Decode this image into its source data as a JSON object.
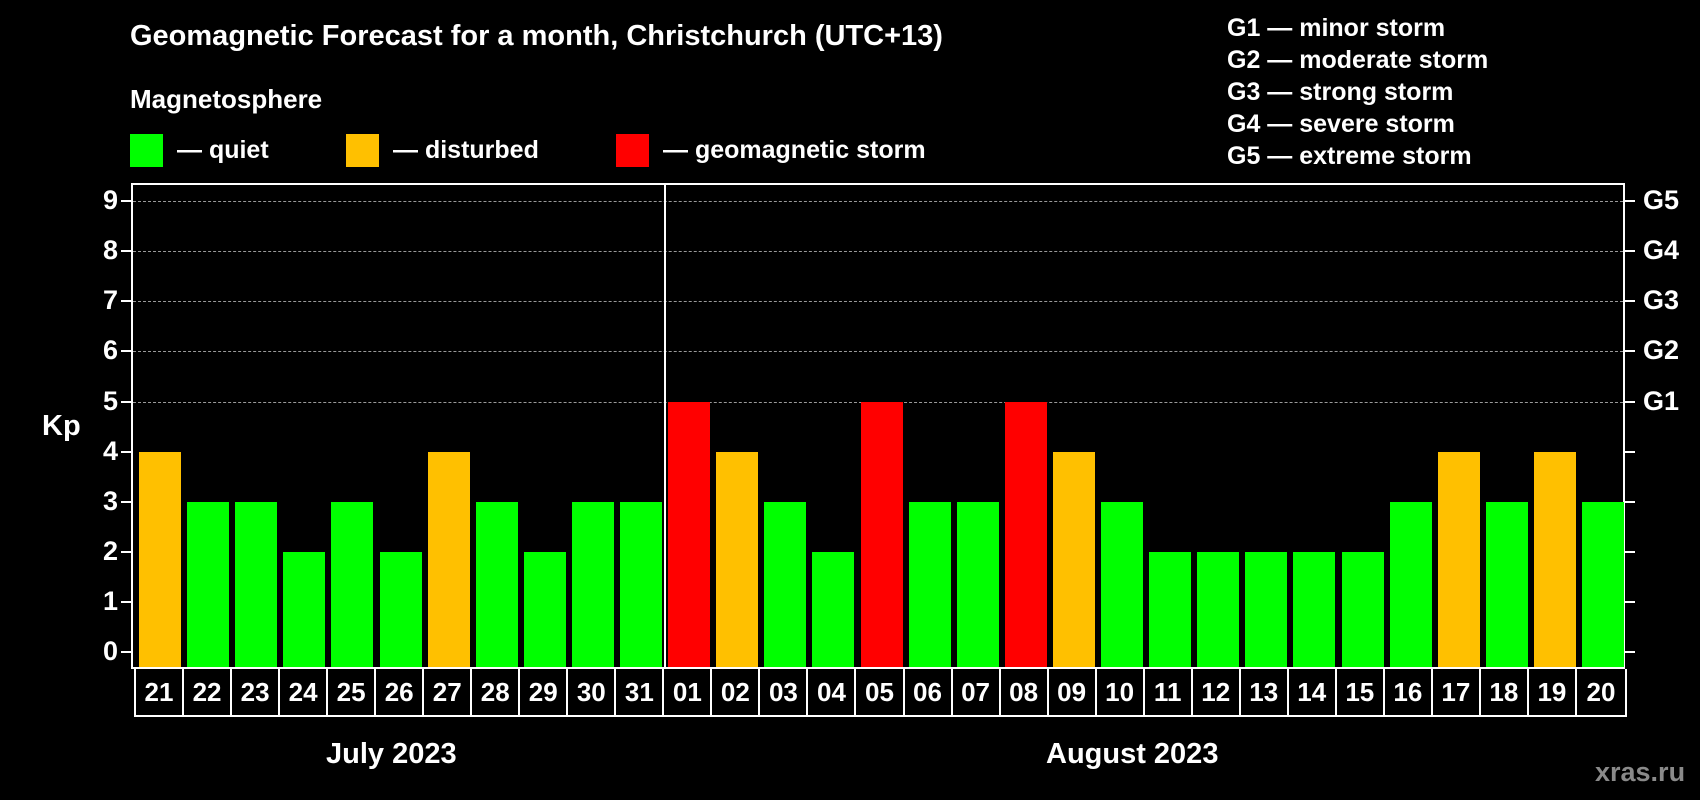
{
  "header": {
    "title": "Geomagnetic Forecast for a month, Christchurch (UTC+13)",
    "subtitle": "Magnetosphere"
  },
  "legend": [
    {
      "label": "— quiet",
      "color": "#00ff00"
    },
    {
      "label": "— disturbed",
      "color": "#ffc000"
    },
    {
      "label": "— geomagnetic storm",
      "color": "#ff0000"
    }
  ],
  "g_scale_legend": [
    "G1 — minor storm",
    "G2 — moderate storm",
    "G3 — strong storm",
    "G4 — severe storm",
    "G5 — extreme storm"
  ],
  "axis": {
    "ylabel": "Kp",
    "yticks": [
      "0",
      "1",
      "2",
      "3",
      "4",
      "5",
      "6",
      "7",
      "8",
      "9"
    ],
    "right_ticks": [
      {
        "kp": 5,
        "label": "G1"
      },
      {
        "kp": 6,
        "label": "G2"
      },
      {
        "kp": 7,
        "label": "G3"
      },
      {
        "kp": 8,
        "label": "G4"
      },
      {
        "kp": 9,
        "label": "G5"
      }
    ]
  },
  "months": [
    {
      "label": "July 2023"
    },
    {
      "label": "August 2023"
    }
  ],
  "watermark": "xras.ru",
  "colors": {
    "quiet": "#00ff00",
    "disturbed": "#ffc000",
    "storm": "#ff0000"
  },
  "chart_data": {
    "type": "bar",
    "title": "Geomagnetic Forecast for a month, Christchurch (UTC+13)",
    "xlabel": "",
    "ylabel": "Kp",
    "ylim": [
      0,
      9
    ],
    "grid": true,
    "categories": [
      "21",
      "22",
      "23",
      "24",
      "25",
      "26",
      "27",
      "28",
      "29",
      "30",
      "31",
      "01",
      "02",
      "03",
      "04",
      "05",
      "06",
      "07",
      "08",
      "09",
      "10",
      "11",
      "12",
      "13",
      "14",
      "15",
      "16",
      "17",
      "18",
      "19",
      "20"
    ],
    "full_dates": [
      "2023-07-21",
      "2023-07-22",
      "2023-07-23",
      "2023-07-24",
      "2023-07-25",
      "2023-07-26",
      "2023-07-27",
      "2023-07-28",
      "2023-07-29",
      "2023-07-30",
      "2023-07-31",
      "2023-08-01",
      "2023-08-02",
      "2023-08-03",
      "2023-08-04",
      "2023-08-05",
      "2023-08-06",
      "2023-08-07",
      "2023-08-08",
      "2023-08-09",
      "2023-08-10",
      "2023-08-11",
      "2023-08-12",
      "2023-08-13",
      "2023-08-14",
      "2023-08-15",
      "2023-08-16",
      "2023-08-17",
      "2023-08-18",
      "2023-08-19",
      "2023-08-20"
    ],
    "values": [
      4,
      3,
      3,
      2,
      3,
      2,
      4,
      3,
      2,
      3,
      3,
      5,
      4,
      3,
      2,
      5,
      3,
      3,
      5,
      4,
      3,
      2,
      2,
      2,
      2,
      2,
      3,
      4,
      3,
      4,
      3
    ],
    "status": [
      "disturbed",
      "quiet",
      "quiet",
      "quiet",
      "quiet",
      "quiet",
      "disturbed",
      "quiet",
      "quiet",
      "quiet",
      "quiet",
      "storm",
      "disturbed",
      "quiet",
      "quiet",
      "storm",
      "quiet",
      "quiet",
      "storm",
      "disturbed",
      "quiet",
      "quiet",
      "quiet",
      "quiet",
      "quiet",
      "quiet",
      "quiet",
      "disturbed",
      "quiet",
      "disturbed",
      "quiet"
    ],
    "legend": [
      "quiet",
      "disturbed",
      "geomagnetic storm"
    ],
    "right_axis": {
      "G1": 5,
      "G2": 6,
      "G3": 7,
      "G4": 8,
      "G5": 9
    },
    "month_labels": [
      "July 2023",
      "August 2023"
    ]
  }
}
